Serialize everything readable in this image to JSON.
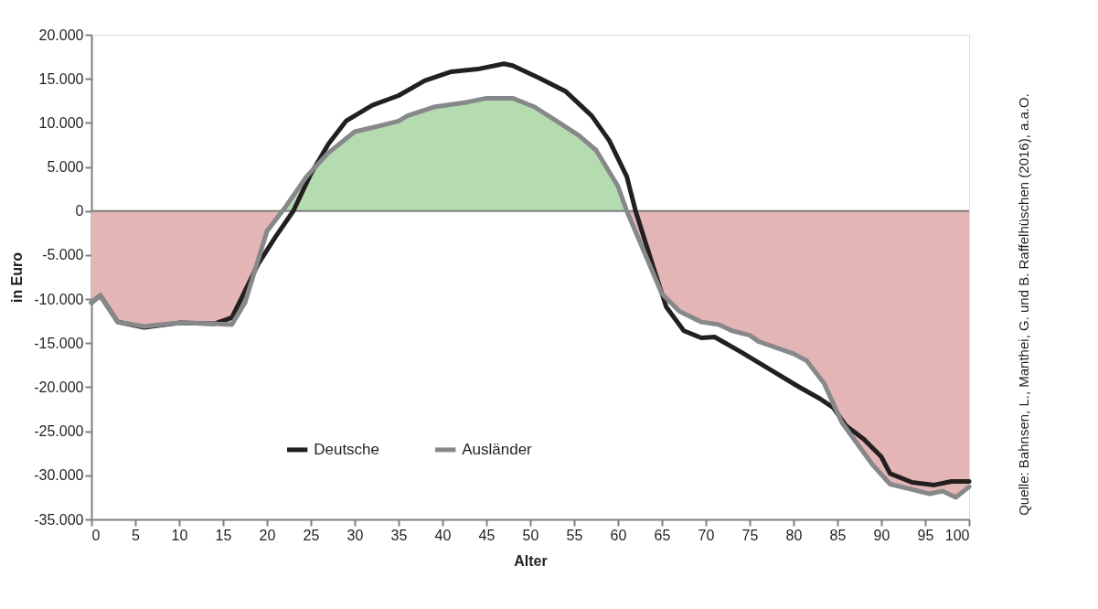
{
  "chart_data": {
    "type": "line",
    "xlabel": "Alter",
    "ylabel": "in Euro",
    "series": [
      {
        "name": "Deutsche",
        "color": "#231f20",
        "x": [
          0,
          1,
          3,
          6,
          10,
          14,
          16,
          17,
          19,
          21,
          23,
          25,
          27,
          29,
          32,
          35,
          38,
          41,
          44,
          47,
          48,
          51,
          54,
          57,
          59,
          61,
          62,
          64,
          65.5,
          67.5,
          69.5,
          71,
          74,
          77.5,
          80.5,
          83,
          84.5,
          86,
          88,
          90,
          91,
          93.5,
          96,
          98,
          100
        ],
        "values": [
          -10400,
          -9600,
          -12600,
          -13200,
          -12700,
          -12800,
          -12100,
          -10100,
          -6000,
          -2900,
          0,
          4200,
          7600,
          10200,
          12000,
          13100,
          14800,
          15800,
          16100,
          16700,
          16500,
          15100,
          13600,
          10800,
          8000,
          3900,
          0,
          -6300,
          -10900,
          -13600,
          -14400,
          -14300,
          -16000,
          -18100,
          -19900,
          -21300,
          -22300,
          -24400,
          -25900,
          -27900,
          -29800,
          -30800,
          -31100,
          -30700,
          -30700
        ]
      },
      {
        "name": "Ausländer",
        "color": "#87888a",
        "x": [
          0,
          1,
          3,
          6,
          10,
          14,
          16,
          17.5,
          20,
          22,
          24.5,
          27,
          30,
          33,
          35,
          36,
          39,
          42.5,
          45,
          48,
          50.5,
          53,
          55.5,
          57.5,
          60,
          61,
          65,
          67,
          69.5,
          71.5,
          73,
          75,
          76,
          80,
          81.5,
          83.5,
          85.5,
          89,
          91,
          93.5,
          95.5,
          97,
          98.5,
          100
        ],
        "values": [
          -10400,
          -9600,
          -12600,
          -13100,
          -12700,
          -12800,
          -12900,
          -10400,
          -2300,
          300,
          3900,
          6600,
          9000,
          9700,
          10200,
          10800,
          11800,
          12300,
          12800,
          12800,
          11800,
          10200,
          8600,
          6900,
          2800,
          0,
          -9400,
          -11400,
          -12600,
          -12900,
          -13600,
          -14100,
          -14800,
          -16200,
          -17000,
          -19600,
          -24000,
          -28800,
          -31000,
          -31600,
          -32100,
          -31800,
          -32500,
          -31300
        ]
      },
      {
        "type": "area",
        "color": "#b5dbb0",
        "x": [
          21.8,
          22,
          24.5,
          27,
          30,
          33,
          35,
          36,
          39,
          42.5,
          45,
          48,
          50.5,
          53,
          55.5,
          57.5,
          60,
          61
        ],
        "values": [
          0,
          300,
          3900,
          6600,
          9000,
          9700,
          10200,
          10800,
          11800,
          12300,
          12800,
          12800,
          11800,
          10200,
          8600,
          6900,
          2800,
          0
        ]
      },
      {
        "type": "area",
        "color": "#e3b5b5",
        "x": [
          0,
          1,
          3,
          6,
          10,
          14,
          16,
          17.5,
          20,
          21.8
        ],
        "values": [
          -10400,
          -9600,
          -12600,
          -13100,
          -12700,
          -12800,
          -12900,
          -10400,
          -2300,
          0
        ]
      },
      {
        "type": "area",
        "color": "#e3b5b5",
        "x": [
          61,
          65,
          67,
          69.5,
          71.5,
          73,
          75,
          76,
          80,
          81.5,
          83.5,
          85.5,
          89,
          91,
          93.5,
          95.5,
          97,
          98.5,
          100
        ],
        "values": [
          0,
          -9400,
          -11400,
          -12600,
          -12900,
          -13600,
          -14100,
          -14800,
          -16200,
          -17000,
          -19600,
          -24000,
          -28800,
          -31000,
          -31600,
          -32100,
          -31800,
          -32500,
          -31300
        ]
      }
    ],
    "xlim": [
      0,
      100
    ],
    "xticks": [
      0,
      5,
      10,
      15,
      20,
      25,
      30,
      35,
      40,
      45,
      50,
      55,
      60,
      65,
      70,
      75,
      80,
      85,
      90,
      95,
      100
    ],
    "ylim": [
      -35000,
      20000
    ],
    "yticks": [
      {
        "value": 20000,
        "label": "20.000"
      },
      {
        "value": 15000,
        "label": "15.000"
      },
      {
        "value": 10000,
        "label": "10.000"
      },
      {
        "value": 5000,
        "label": "5.000"
      },
      0,
      {
        "value": -5000,
        "label": "-5.000"
      },
      {
        "value": -10000,
        "label": "-10.000"
      },
      {
        "value": -15000,
        "label": "-15.000"
      },
      {
        "value": -20000,
        "label": "-20.000"
      },
      {
        "value": -25000,
        "label": "-25.000"
      },
      {
        "value": -30000,
        "label": "-30.000"
      },
      {
        "value": -35000,
        "label": "-35.000"
      }
    ],
    "ref_lines": [
      {
        "axis": "y",
        "value": 0,
        "color": "#7f7f7f"
      }
    ],
    "grid": false,
    "legend": "bottom",
    "line_style": "solid",
    "marker": "none",
    "annotations": [
      "Quelle: Bahnsen, L., Manthei, G. und B. Raffelhüschen (2016), a.a.O."
    ]
  }
}
